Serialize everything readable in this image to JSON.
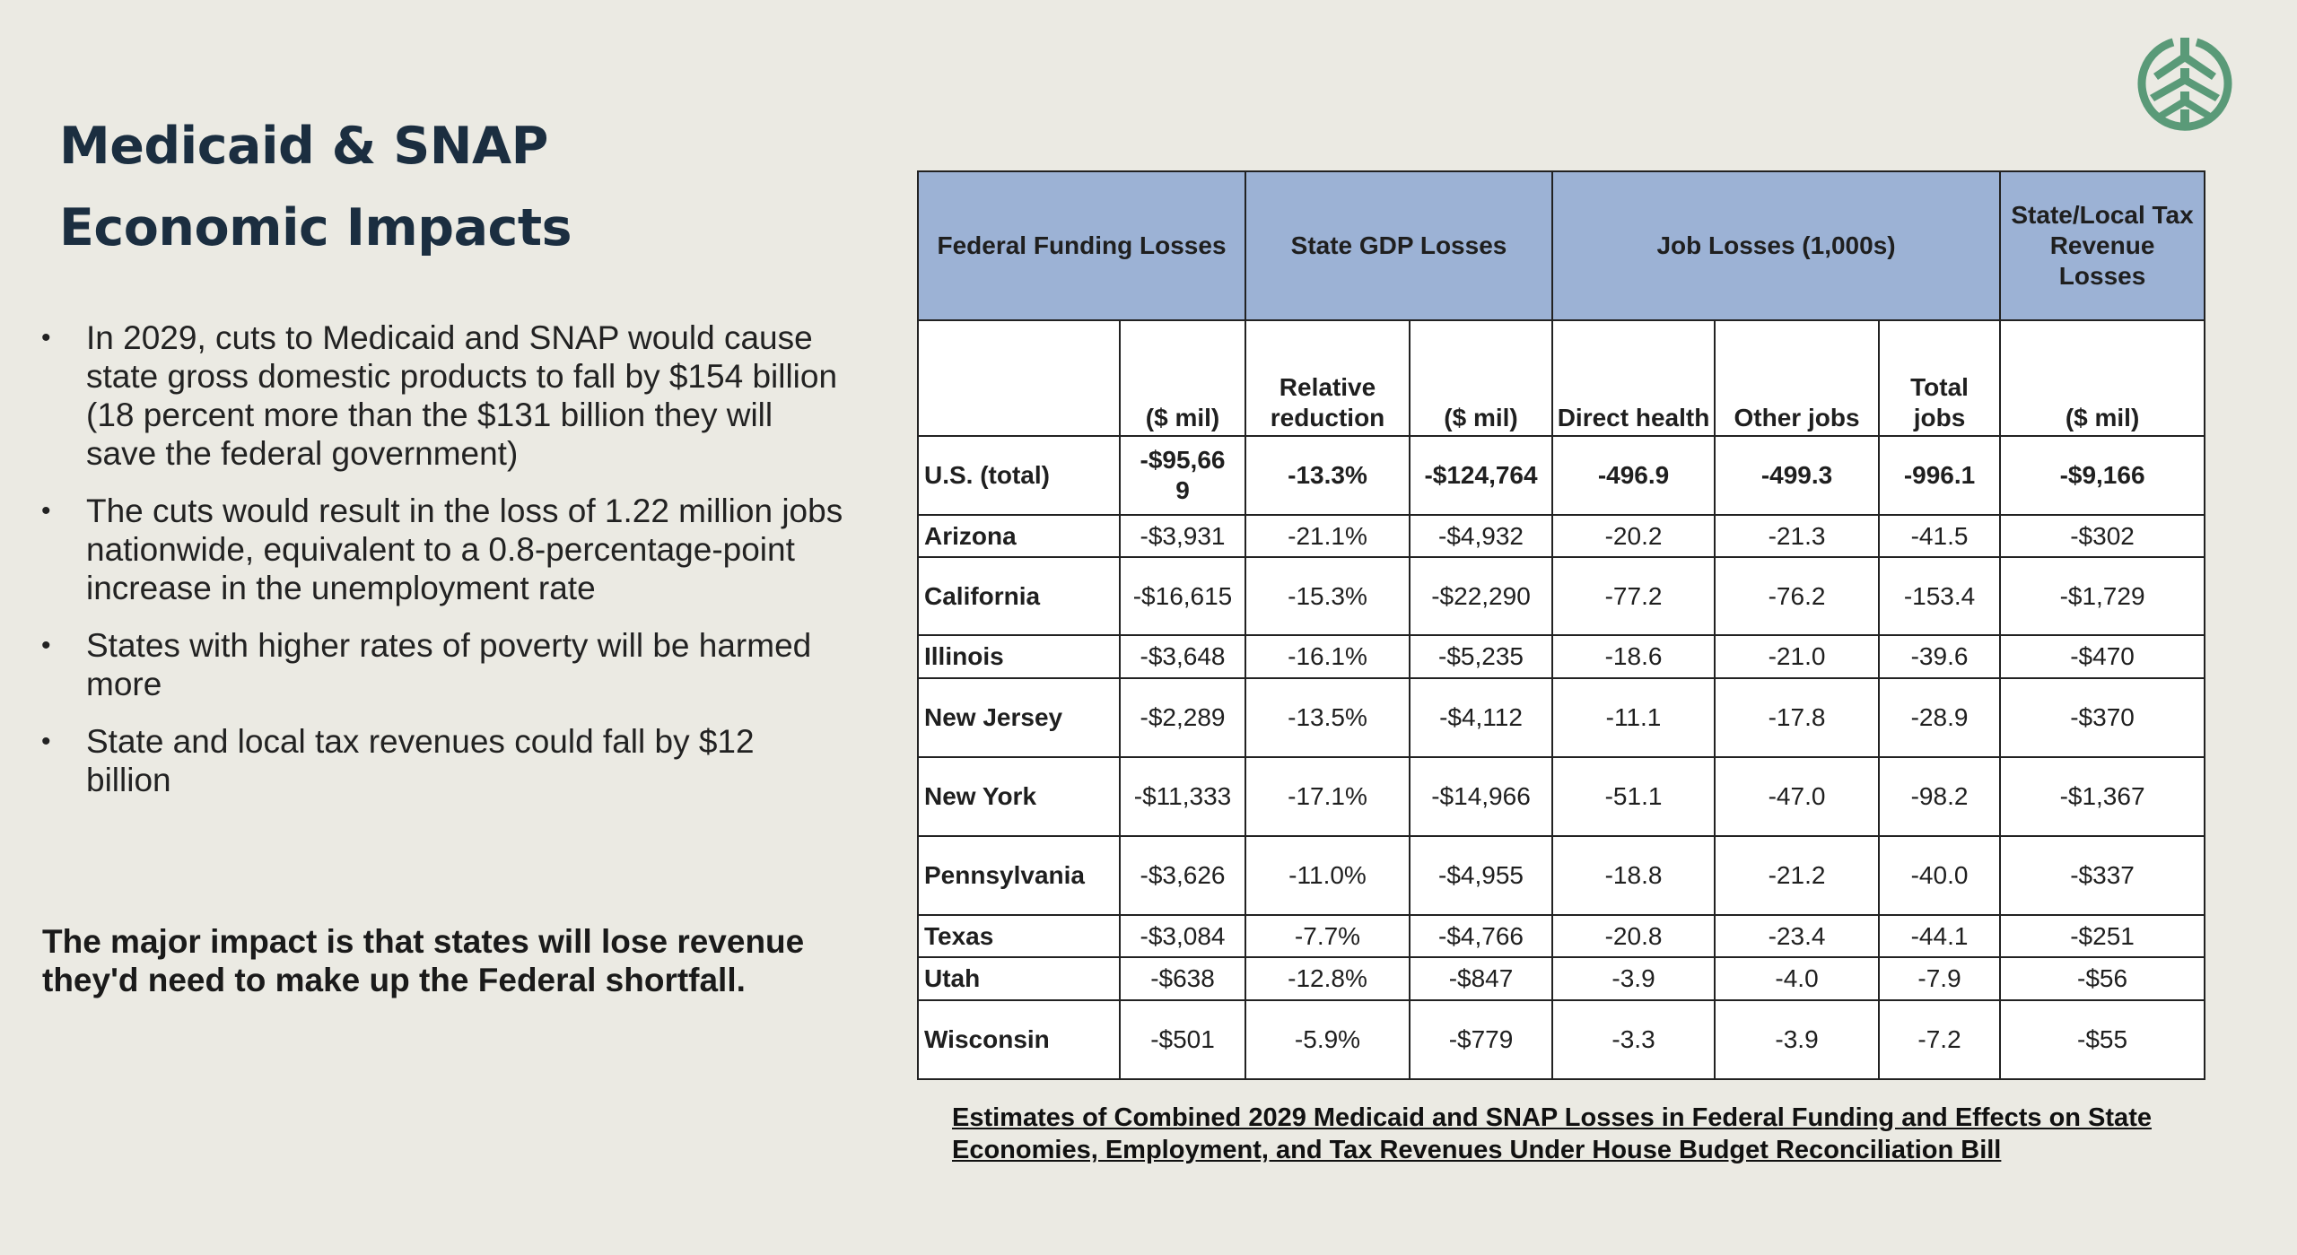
{
  "slide": {
    "title_line1": "Medicaid & SNAP",
    "title_line2": "Economic Impacts",
    "logo_icon": "tree-in-circle-logo",
    "accent_color": "#5a9a78",
    "title_color": "#1b2e40",
    "header_fill": "#9cb2d5",
    "background": "#ebeae3"
  },
  "bullets": [
    "In 2029, cuts to Medicaid and SNAP would cause state gross domestic products to fall by $154 billion (18 percent more than the $131 billion they will save the federal government)",
    "The cuts would result in the loss of 1.22 million jobs nationwide, equivalent to a 0.8-percentage-point increase in the unemployment rate",
    "States with higher rates of poverty will be harmed more",
    "State and local tax revenues could fall by $12 billion"
  ],
  "conclusion": "The major impact is that states will lose revenue they'd need to make up the Federal shortfall.",
  "table": {
    "group_headers": [
      "Federal Funding Losses",
      "State GDP Losses",
      "Job Losses (1,000s)",
      "State/Local Tax Revenue Losses"
    ],
    "sub_headers": [
      "",
      "($ mil)",
      "Relative reduction",
      "($ mil)",
      "Direct health",
      "Other jobs",
      "Total jobs",
      "($ mil)"
    ],
    "rows": [
      [
        "U.S. (total)",
        "-$95,669",
        "-13.3%",
        "-$124,764",
        "-496.9",
        "-499.3",
        "-996.1",
        "-$9,166"
      ],
      [
        "Arizona",
        "-$3,931",
        "-21.1%",
        "-$4,932",
        "-20.2",
        "-21.3",
        "-41.5",
        "-$302"
      ],
      [
        "California",
        "-$16,615",
        "-15.3%",
        "-$22,290",
        "-77.2",
        "-76.2",
        "-153.4",
        "-$1,729"
      ],
      [
        "Illinois",
        "-$3,648",
        "-16.1%",
        "-$5,235",
        "-18.6",
        "-21.0",
        "-39.6",
        "-$470"
      ],
      [
        "New Jersey",
        "-$2,289",
        "-13.5%",
        "-$4,112",
        "-11.1",
        "-17.8",
        "-28.9",
        "-$370"
      ],
      [
        "New York",
        "-$11,333",
        "-17.1%",
        "-$14,966",
        "-51.1",
        "-47.0",
        "-98.2",
        "-$1,367"
      ],
      [
        "Pennsylvania",
        "-$3,626",
        "-11.0%",
        "-$4,955",
        "-18.8",
        "-21.2",
        "-40.0",
        "-$337"
      ],
      [
        "Texas",
        "-$3,084",
        "-7.7%",
        "-$4,766",
        "-20.8",
        "-23.4",
        "-44.1",
        "-$251"
      ],
      [
        "Utah",
        "-$638",
        "-12.8%",
        "-$847",
        "-3.9",
        "-4.0",
        "-7.9",
        "-$56"
      ],
      [
        "Wisconsin",
        "-$501",
        "-5.9%",
        "-$779",
        "-3.3",
        "-3.9",
        "-7.2",
        "-$55"
      ]
    ],
    "caption": "Estimates of Combined 2029 Medicaid and SNAP Losses in Federal Funding and Effects on State Economies, Employment, and Tax Revenues Under House Budget Reconciliation Bill"
  }
}
